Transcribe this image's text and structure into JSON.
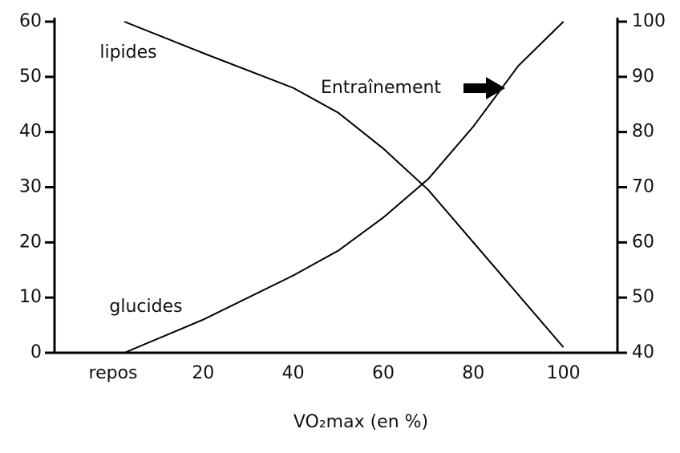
{
  "chart_data": {
    "type": "line",
    "x_label": "VO₂max (en %)",
    "annotation": "Entraînement",
    "x": [
      2.5,
      20,
      40,
      50,
      60,
      70,
      80,
      90,
      100
    ],
    "xlim": [
      -13,
      112
    ],
    "xticks": [
      {
        "value": 0,
        "label": "repos"
      },
      20,
      40,
      60,
      80,
      100
    ],
    "ylim": [
      0,
      60
    ],
    "yticks": [
      0,
      10,
      20,
      30,
      40,
      50,
      60
    ],
    "y2lim": [
      40,
      100
    ],
    "y2ticks": [
      40,
      50,
      60,
      70,
      80,
      90,
      100
    ],
    "series": [
      {
        "name": "lipides",
        "color": "#000000",
        "values": [
          60,
          54.3,
          48,
          43.5,
          37,
          29.5,
          20,
          10.5,
          1
        ]
      },
      {
        "name": "glucides",
        "color": "#000000",
        "axis": "y2",
        "values": [
          40,
          46,
          54,
          58.5,
          64.5,
          71.5,
          81,
          92,
          100
        ]
      }
    ]
  }
}
